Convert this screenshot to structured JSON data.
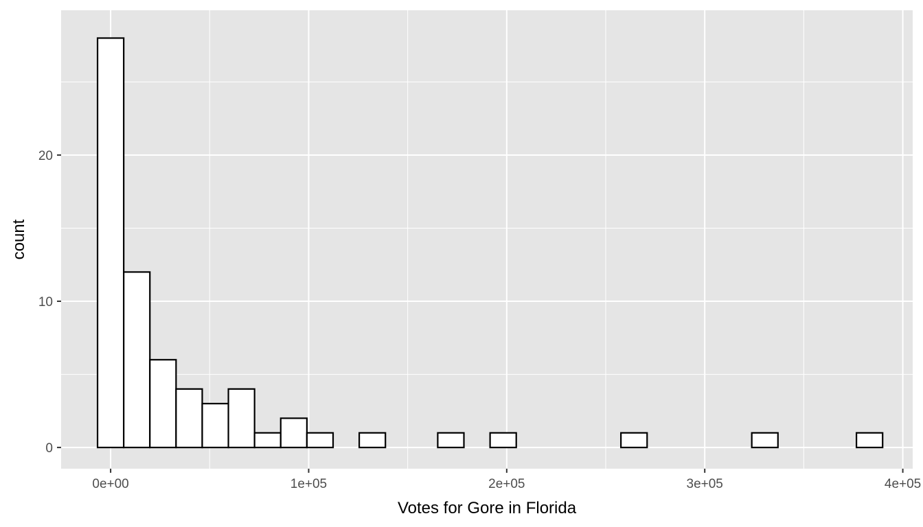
{
  "chart_data": {
    "type": "bar",
    "title": "",
    "xlabel": "Votes for Gore in Florida",
    "ylabel": "count",
    "xlim": [
      -25000,
      405000
    ],
    "ylim": [
      -1.45,
      29.9
    ],
    "bins": [
      {
        "x0": -6607,
        "x1": 6607,
        "count": 28
      },
      {
        "x0": 6607,
        "x1": 19821,
        "count": 12
      },
      {
        "x0": 19821,
        "x1": 33035,
        "count": 6
      },
      {
        "x0": 33035,
        "x1": 46249,
        "count": 4
      },
      {
        "x0": 46249,
        "x1": 59463,
        "count": 3
      },
      {
        "x0": 59463,
        "x1": 72677,
        "count": 4
      },
      {
        "x0": 72677,
        "x1": 85891,
        "count": 1
      },
      {
        "x0": 85891,
        "x1": 99105,
        "count": 2
      },
      {
        "x0": 99105,
        "x1": 112319,
        "count": 1
      },
      {
        "x0": 112319,
        "x1": 125533,
        "count": 0
      },
      {
        "x0": 125533,
        "x1": 138747,
        "count": 1
      },
      {
        "x0": 138747,
        "x1": 151961,
        "count": 0
      },
      {
        "x0": 151961,
        "x1": 165175,
        "count": 0
      },
      {
        "x0": 165175,
        "x1": 178389,
        "count": 1
      },
      {
        "x0": 178389,
        "x1": 191603,
        "count": 0
      },
      {
        "x0": 191603,
        "x1": 204817,
        "count": 1
      },
      {
        "x0": 204817,
        "x1": 218031,
        "count": 0
      },
      {
        "x0": 218031,
        "x1": 231245,
        "count": 0
      },
      {
        "x0": 231245,
        "x1": 244459,
        "count": 0
      },
      {
        "x0": 244459,
        "x1": 257673,
        "count": 0
      },
      {
        "x0": 257673,
        "x1": 270887,
        "count": 1
      },
      {
        "x0": 270887,
        "x1": 284101,
        "count": 0
      },
      {
        "x0": 284101,
        "x1": 297315,
        "count": 0
      },
      {
        "x0": 297315,
        "x1": 310529,
        "count": 0
      },
      {
        "x0": 310529,
        "x1": 323743,
        "count": 0
      },
      {
        "x0": 323743,
        "x1": 336957,
        "count": 1
      },
      {
        "x0": 336957,
        "x1": 350171,
        "count": 0
      },
      {
        "x0": 350171,
        "x1": 363385,
        "count": 0
      },
      {
        "x0": 363385,
        "x1": 376599,
        "count": 0
      },
      {
        "x0": 376599,
        "x1": 389813,
        "count": 1
      }
    ],
    "x_ticks": [
      {
        "value": 0,
        "label": "0e+00"
      },
      {
        "value": 100000,
        "label": "1e+05"
      },
      {
        "value": 200000,
        "label": "2e+05"
      },
      {
        "value": 300000,
        "label": "3e+05"
      },
      {
        "value": 400000,
        "label": "4e+05"
      }
    ],
    "x_minor_gridlines": [
      50000,
      150000,
      250000,
      350000
    ],
    "y_ticks": [
      {
        "value": 0,
        "label": "0"
      },
      {
        "value": 10,
        "label": "10"
      },
      {
        "value": 20,
        "label": "20"
      }
    ],
    "y_minor_gridlines": [
      5,
      15,
      25
    ],
    "grid": true,
    "colors": {
      "panel_background": "#e5e5e5",
      "grid": "#ffffff",
      "bar_fill": "#ffffff",
      "bar_outline": "#000000",
      "tick_text": "#4d4d4d",
      "tick_mark": "#333333"
    }
  }
}
